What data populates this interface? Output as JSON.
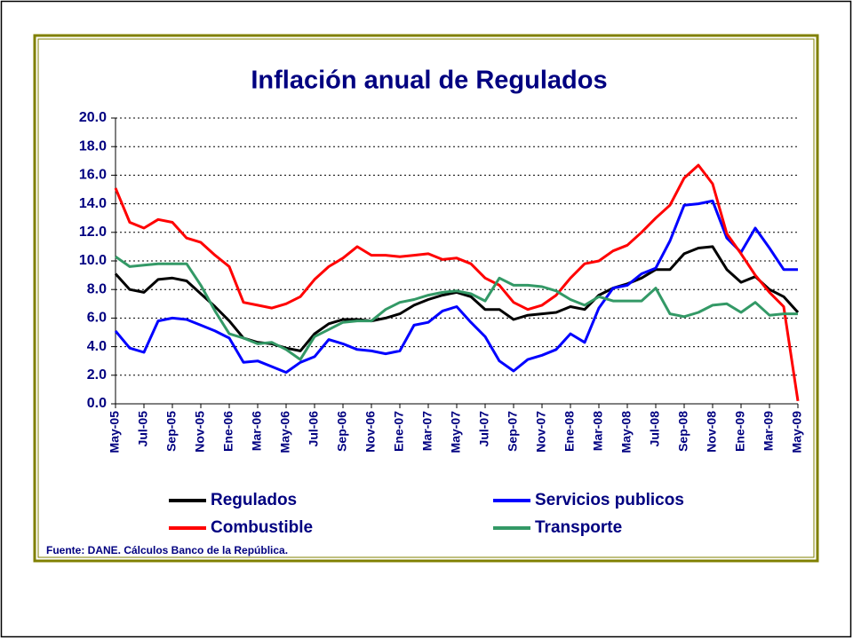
{
  "chart_data": {
    "type": "line",
    "title": "Inflación anual de Regulados",
    "source": "Fuente: DANE. Cálculos Banco de la República.",
    "categories": [
      "May-05",
      null,
      "Jul-05",
      null,
      "Sep-05",
      null,
      "Nov-05",
      null,
      "Ene-06",
      null,
      "Mar-06",
      null,
      "May-06",
      null,
      "Jul-06",
      null,
      "Sep-06",
      null,
      "Nov-06",
      null,
      "Ene-07",
      null,
      "Mar-07",
      null,
      "May-07",
      null,
      "Jul-07",
      null,
      "Sep-07",
      null,
      "Nov-07",
      null,
      "Ene-08",
      null,
      "Mar-08",
      null,
      "May-08",
      null,
      "Jul-08",
      null,
      "Sep-08",
      null,
      "Nov-08",
      null,
      "Ene-09",
      null,
      "Mar-09",
      null,
      "May-09"
    ],
    "series": [
      {
        "name": "Regulados",
        "color": "#000000",
        "values": [
          9.1,
          8.0,
          7.8,
          8.7,
          8.8,
          8.6,
          7.7,
          6.8,
          5.8,
          4.6,
          4.3,
          4.2,
          3.9,
          3.7,
          4.9,
          5.6,
          5.9,
          5.9,
          5.8,
          6.0,
          6.3,
          6.9,
          7.3,
          7.6,
          7.8,
          7.5,
          6.6,
          6.6,
          5.9,
          6.2,
          6.3,
          6.4,
          6.8,
          6.6,
          7.6,
          8.1,
          8.4,
          8.8,
          9.4,
          9.4,
          10.5,
          10.9,
          11.0,
          9.4,
          8.5,
          8.9,
          8.0,
          7.5,
          6.4
        ]
      },
      {
        "name": "Servicios publicos",
        "color": "#0000ff",
        "values": [
          5.1,
          3.9,
          3.6,
          5.8,
          6.0,
          5.9,
          5.5,
          5.1,
          4.6,
          2.9,
          3.0,
          2.6,
          2.2,
          2.9,
          3.3,
          4.5,
          4.2,
          3.8,
          3.7,
          3.5,
          3.7,
          5.5,
          5.7,
          6.5,
          6.8,
          5.7,
          4.7,
          3.0,
          2.3,
          3.1,
          3.4,
          3.8,
          4.9,
          4.3,
          6.7,
          8.1,
          8.3,
          9.1,
          9.5,
          11.4,
          13.9,
          14.0,
          14.2,
          11.6,
          10.6,
          12.3,
          10.9,
          9.4,
          9.4
        ]
      },
      {
        "name": "Combustible",
        "color": "#ff0000",
        "values": [
          15.1,
          12.7,
          12.3,
          12.9,
          12.7,
          11.6,
          11.3,
          10.4,
          9.6,
          7.1,
          6.9,
          6.7,
          7.0,
          7.5,
          8.7,
          9.6,
          10.2,
          11.0,
          10.4,
          10.4,
          10.3,
          10.4,
          10.5,
          10.1,
          10.2,
          9.8,
          8.8,
          8.3,
          7.1,
          6.6,
          6.9,
          7.6,
          8.8,
          9.8,
          10.0,
          10.7,
          11.1,
          12.0,
          13.0,
          13.9,
          15.8,
          16.7,
          15.4,
          11.9,
          10.5,
          9.0,
          7.8,
          6.8,
          0.2
        ]
      },
      {
        "name": "Transporte",
        "color": "#339966",
        "values": [
          10.3,
          9.6,
          9.7,
          9.8,
          9.8,
          9.8,
          8.3,
          6.5,
          4.9,
          4.6,
          4.2,
          4.3,
          3.8,
          3.1,
          4.7,
          5.2,
          5.7,
          5.8,
          5.8,
          6.6,
          7.1,
          7.3,
          7.6,
          7.8,
          7.9,
          7.7,
          7.2,
          8.8,
          8.3,
          8.3,
          8.2,
          7.9,
          7.3,
          6.9,
          7.5,
          7.2,
          7.2,
          7.2,
          8.1,
          6.3,
          6.1,
          6.4,
          6.9,
          7.0,
          6.4,
          7.1,
          6.2,
          6.3,
          6.3
        ]
      }
    ],
    "ylim": [
      0,
      20
    ],
    "yticks": [
      {
        "value": 0,
        "label": "0.0"
      },
      {
        "value": 2,
        "label": "2.0"
      },
      {
        "value": 4,
        "label": "4.0"
      },
      {
        "value": 6,
        "label": "6.0"
      },
      {
        "value": 8,
        "label": "8.0"
      },
      {
        "value": 10,
        "label": "10.0"
      },
      {
        "value": 12,
        "label": "12.0"
      },
      {
        "value": 14,
        "label": "14.0"
      },
      {
        "value": 16,
        "label": "16.0"
      },
      {
        "value": 18,
        "label": "18.0"
      },
      {
        "value": 20,
        "label": "20.0"
      }
    ],
    "grid": true,
    "text_color": "#000080"
  }
}
